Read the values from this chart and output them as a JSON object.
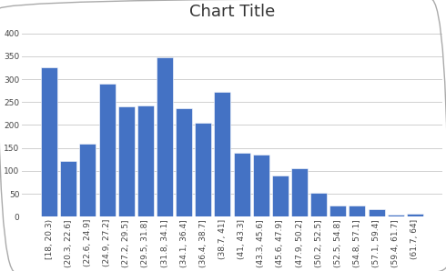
{
  "title": "Chart Title",
  "categories": [
    "[18, 20.3)",
    "(20.3, 22.6]",
    "(22.6, 24.9]",
    "(24.9, 27.2]",
    "(27.2, 29.5]",
    "(29.5, 31.8]",
    "(31.8, 34.1]",
    "(34.1, 36.4]",
    "(36.4, 38.7]",
    "(38.7, 41]",
    "(41, 43.3]",
    "(43.3, 45.6]",
    "(45.6, 47.9]",
    "(47.9, 50.2]",
    "(50.2, 52.5]",
    "(52.5, 54.8]",
    "(54.8, 57.1]",
    "(57.1, 59.4]",
    "(59.4, 61.7]",
    "(61.7, 64]"
  ],
  "values": [
    325,
    122,
    160,
    290,
    240,
    243,
    347,
    237,
    205,
    273,
    140,
    135,
    90,
    105,
    52,
    25,
    25,
    16,
    5,
    7
  ],
  "bar_color": "#4472C4",
  "ylim": [
    0,
    420
  ],
  "yticks": [
    0,
    50,
    100,
    150,
    200,
    250,
    300,
    350,
    400
  ],
  "title_fontsize": 13,
  "tick_fontsize": 6.5,
  "plot_bg_color": "#FFFFFF",
  "grid_color": "#D0D0D0",
  "outer_bg": "#FFFFFF",
  "border_color": "#AAAAAA"
}
